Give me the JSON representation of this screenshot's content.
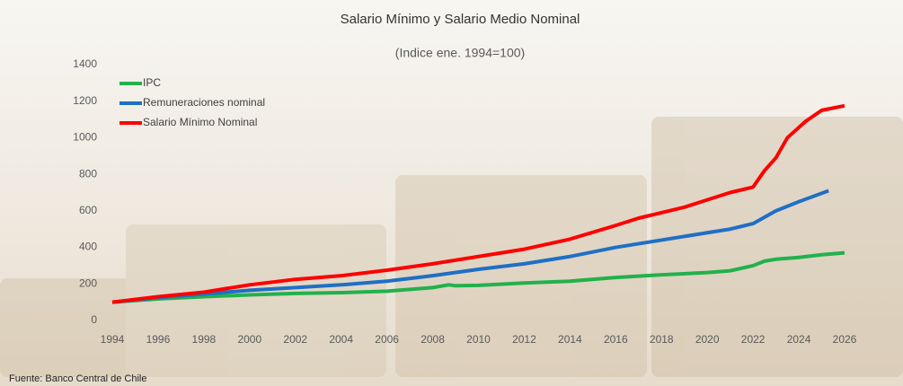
{
  "chart_data": {
    "type": "line",
    "title": "Salario Mínimo y Salario Medio Nominal",
    "subtitle": "(Indice ene. 1994=100)",
    "source": "Fuente: Banco Central de Chile",
    "xlim": [
      1994,
      2026
    ],
    "xticks": [
      1994,
      1996,
      1998,
      2000,
      2002,
      2004,
      2006,
      2008,
      2010,
      2012,
      2014,
      2016,
      2018,
      2020,
      2022,
      2024,
      2026
    ],
    "ylim": [
      0,
      1400
    ],
    "yticks": [
      0,
      200,
      400,
      600,
      800,
      1000,
      1200,
      1400
    ],
    "grid": false,
    "legend": "top-left",
    "series": [
      {
        "name": "IPC",
        "color": "#22b14c",
        "x": [
          1994,
          1996,
          1998,
          2000,
          2002,
          2004,
          2006,
          2008,
          2008.7,
          2009,
          2010,
          2012,
          2014,
          2016,
          2018,
          2020,
          2021,
          2022,
          2022.5,
          2023,
          2024,
          2025,
          2026
        ],
        "values": [
          100,
          118,
          130,
          140,
          148,
          152,
          160,
          180,
          195,
          190,
          192,
          205,
          215,
          235,
          250,
          262,
          272,
          300,
          325,
          335,
          345,
          360,
          370
        ]
      },
      {
        "name": "Remuneraciones nominal",
        "color": "#1f6fc5",
        "x": [
          1994,
          1996,
          1998,
          2000,
          2002,
          2004,
          2006,
          2008,
          2010,
          2012,
          2014,
          2016,
          2018,
          2020,
          2021,
          2022,
          2023,
          2024,
          2025.3
        ],
        "values": [
          100,
          125,
          145,
          165,
          180,
          195,
          215,
          245,
          280,
          310,
          350,
          400,
          440,
          480,
          500,
          530,
          600,
          650,
          710
        ]
      },
      {
        "name": "Salario Mínimo Nominal",
        "color": "#ff0000",
        "x": [
          1994,
          1996,
          1998,
          2000,
          2002,
          2004,
          2006,
          2008,
          2010,
          2012,
          2014,
          2016,
          2017,
          2018,
          2019,
          2020,
          2021,
          2022,
          2022.5,
          2023,
          2023.5,
          2024.3,
          2025,
          2026
        ],
        "values": [
          100,
          130,
          155,
          195,
          225,
          245,
          275,
          310,
          350,
          390,
          445,
          520,
          560,
          590,
          620,
          660,
          700,
          730,
          820,
          890,
          1000,
          1090,
          1150,
          1175
        ]
      }
    ]
  }
}
